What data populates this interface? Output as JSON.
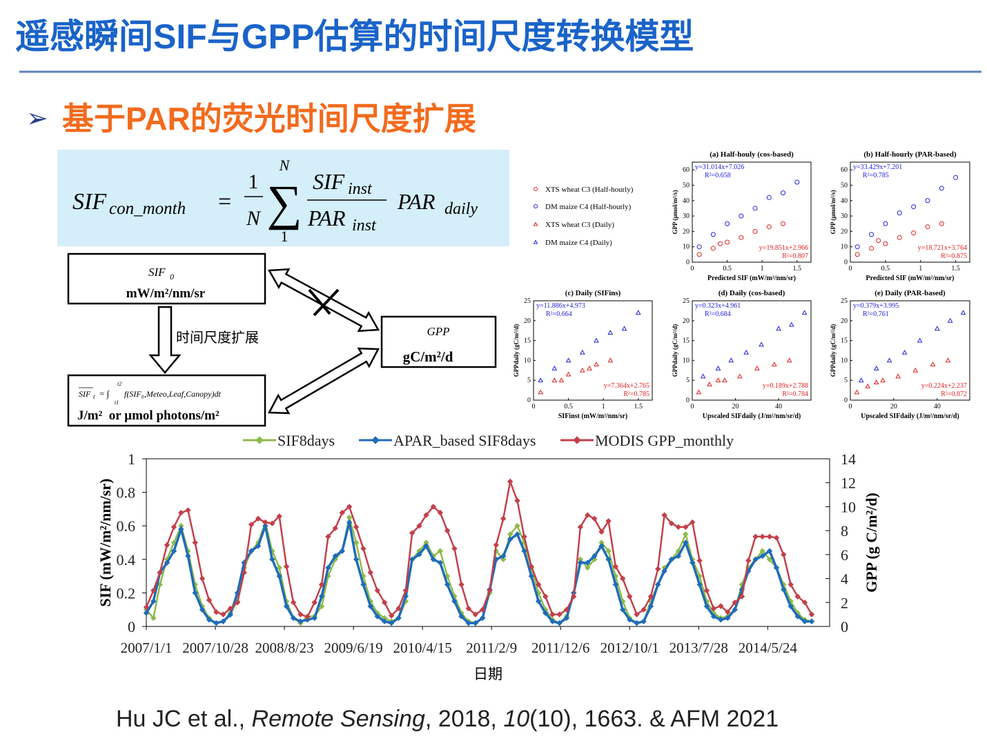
{
  "header": {
    "title": "遥感瞬间SIF与GPP估算的时间尺度转换模型"
  },
  "subtitle": {
    "bullet": "➢",
    "text": "基于PAR的荧光时间尺度扩展"
  },
  "formula": {
    "lhs": "SIF",
    "lhs_sub": "con_month",
    "eq": "=",
    "frac_num": "1",
    "frac_den": "N",
    "sum_top": "N",
    "sum": "∑",
    "sum_bottom": "1",
    "num": "SIF",
    "num_sub": "inst",
    "den": "PAR",
    "den_sub": "inst",
    "rhs": "PAR",
    "rhs_sub": "daily"
  },
  "diagram": {
    "source": {
      "symbol": "SIF",
      "symbol_sub": "0",
      "unit": "mW/m²/nm/sr"
    },
    "target": {
      "label": "GPP",
      "unit": "gC/m²/d"
    },
    "upscaled": {
      "symbol": "SIF",
      "symbol_sub": "t",
      "expr": "= ∫",
      "lower": "t1",
      "upper": "t2",
      "body": "f(SIF₀,Meteo,Leaf,Canopy)dt",
      "unit": "J/m²  or µmol photons/m²"
    },
    "arrow_label": "时间尺度扩展"
  },
  "chart_data": [
    {
      "type": "scatter",
      "marker": "circle",
      "title": "(a) Half-houly (cos-based)",
      "xlabel": "Predicted SIF (mW/m²/nm/sr)",
      "ylabel": "GPP (μmol/m²/s)",
      "xlim": [
        0,
        1.7
      ],
      "ylim": [
        0,
        65
      ],
      "xticks": [
        0,
        0.5,
        1,
        1.5
      ],
      "yticks": [
        0,
        10,
        20,
        30,
        40,
        50,
        60
      ],
      "series": [
        {
          "name": "XTS wheat C3 (Half-hourly)",
          "color": "#e02020",
          "x": [
            0.1,
            0.3,
            0.5,
            0.7,
            0.9,
            1.1,
            1.3,
            0.4
          ],
          "values": [
            5,
            9,
            13,
            16,
            20,
            23,
            25,
            12
          ]
        },
        {
          "name": "DM maize C4 (Half-hourly)",
          "color": "#2020e0",
          "x": [
            0.1,
            0.3,
            0.5,
            0.7,
            0.9,
            1.1,
            1.3,
            1.5
          ],
          "values": [
            10,
            18,
            25,
            30,
            35,
            42,
            45,
            52
          ]
        }
      ],
      "annotations": [
        "y=31.014x+7.026",
        "R²=0.658",
        "y=19.851x+2.966",
        "R²=0.807"
      ]
    },
    {
      "type": "scatter",
      "marker": "circle",
      "title": "(b) Half-hourly (PAR-based)",
      "xlabel": "Predicted SIF (mW/m²/nm/sr)",
      "ylabel": "GPP (μmol/m²/s)",
      "xlim": [
        0,
        1.7
      ],
      "ylim": [
        0,
        65
      ],
      "xticks": [
        0,
        0.5,
        1,
        1.5
      ],
      "yticks": [
        0,
        10,
        20,
        30,
        40,
        50,
        60
      ],
      "series": [
        {
          "color": "#e02020",
          "x": [
            0.1,
            0.3,
            0.5,
            0.7,
            0.9,
            1.1,
            1.3,
            0.4
          ],
          "values": [
            5,
            9,
            12,
            16,
            19,
            23,
            25,
            14
          ]
        },
        {
          "color": "#2020e0",
          "x": [
            0.1,
            0.3,
            0.5,
            0.7,
            0.9,
            1.1,
            1.3,
            1.5
          ],
          "values": [
            10,
            18,
            25,
            32,
            36,
            40,
            48,
            55
          ]
        }
      ],
      "annotations": [
        "y=33.429x+7.201",
        "R²=0.785",
        "y=18.721x+3.764",
        "R²=0.875"
      ]
    },
    {
      "type": "scatter",
      "marker": "triangle",
      "title": "(c) Daily (SIFins)",
      "xlabel": "SIFinst (mW/m²/nm/sr)",
      "ylabel": "GPPdaily (gC/m²/d)",
      "xlim": [
        0,
        1.7
      ],
      "ylim": [
        0,
        25
      ],
      "xticks": [
        0,
        0.5,
        1,
        1.5
      ],
      "yticks": [
        0,
        5,
        10,
        15,
        20,
        25
      ],
      "series": [
        {
          "name": "XTS wheat C3 (Daily)",
          "color": "#e02020",
          "x": [
            0.1,
            0.3,
            0.5,
            0.7,
            0.9,
            1.1,
            0.4,
            0.8
          ],
          "values": [
            2,
            5,
            6.5,
            7.5,
            9,
            10,
            5,
            8
          ]
        },
        {
          "name": "DM maize C4 (Daily)",
          "color": "#2020e0",
          "x": [
            0.1,
            0.3,
            0.5,
            0.7,
            0.9,
            1.1,
            1.3,
            1.5
          ],
          "values": [
            5,
            8,
            10,
            12,
            15,
            17,
            18,
            22
          ]
        }
      ],
      "annotations": [
        "y=11.886x+4.973",
        "R²=0.664",
        "y=7.364x+2.765",
        "R²=0.785"
      ]
    },
    {
      "type": "scatter",
      "marker": "triangle",
      "title": "(d) Daily (cos-based)",
      "xlabel": "Upscaled SIFdaily (J/m²/nm/sr/d)",
      "ylabel": "GPPdaily (gC/m²/d)",
      "xlim": [
        0,
        55
      ],
      "ylim": [
        0,
        25
      ],
      "xticks": [
        0,
        20,
        40
      ],
      "yticks": [
        0,
        5,
        10,
        15,
        20,
        25
      ],
      "series": [
        {
          "color": "#e02020",
          "x": [
            3,
            8,
            15,
            22,
            30,
            38,
            45,
            12
          ],
          "values": [
            2,
            4,
            5,
            6,
            8,
            9,
            10,
            5
          ]
        },
        {
          "color": "#2020e0",
          "x": [
            5,
            12,
            18,
            25,
            32,
            40,
            46,
            52
          ],
          "values": [
            6,
            8,
            10,
            12,
            14,
            18,
            19,
            22
          ]
        }
      ],
      "annotations": [
        "y=0.323x+4.961",
        "R²=0.684",
        "y=0.189x+2.788",
        "R²=0.784"
      ]
    },
    {
      "type": "scatter",
      "marker": "triangle",
      "title": "(e) Daily (PAR-based)",
      "xlabel": "Upscaled SIFdaily (J/m²/nm/sr/d)",
      "ylabel": "GPPdaily (gC/m²/d)",
      "xlim": [
        0,
        55
      ],
      "ylim": [
        0,
        25
      ],
      "xticks": [
        0,
        20,
        40
      ],
      "yticks": [
        0,
        5,
        10,
        15,
        20,
        25
      ],
      "series": [
        {
          "color": "#e02020",
          "x": [
            3,
            8,
            15,
            22,
            30,
            38,
            45,
            12
          ],
          "values": [
            2,
            3.5,
            5,
            6,
            7.5,
            9,
            10,
            4.5
          ]
        },
        {
          "color": "#2020e0",
          "x": [
            5,
            12,
            18,
            25,
            32,
            40,
            46,
            52
          ],
          "values": [
            5,
            8,
            10,
            12,
            15,
            18,
            20,
            22
          ]
        }
      ],
      "annotations": [
        "y=0.379x+3.995",
        "R²=0.761",
        "y=0.224x+2.237",
        "R²=0.872"
      ]
    },
    {
      "type": "line",
      "xlabel": "日期",
      "ylabel": "SIF (mW/m²/nm/sr)",
      "y2label": "GPP (g C/m²/d)",
      "xlim": [
        "2007/1/1",
        "2015/2/17"
      ],
      "xticks": [
        "2007/1/1",
        "2007/10/28",
        "2008/8/23",
        "2009/6/19",
        "2010/4/15",
        "2011/2/9",
        "2011/12/6",
        "2012/10/1",
        "2013/7/28",
        "2014/5/24"
      ],
      "ylim": [
        0,
        1
      ],
      "yticks": [
        0,
        0.2,
        0.4,
        0.6,
        0.8,
        1
      ],
      "y2lim": [
        0,
        14
      ],
      "y2ticks": [
        0,
        2,
        4,
        6,
        8,
        10,
        12,
        14
      ],
      "x": [
        "2007/1/1",
        "2007/2/1",
        "2007/3/1",
        "2007/4/1",
        "2007/5/1",
        "2007/6/1",
        "2007/7/1",
        "2007/8/1",
        "2007/9/1",
        "2007/10/1",
        "2007/11/1",
        "2007/12/1",
        "2008/1/1",
        "2008/2/1",
        "2008/3/1",
        "2008/4/1",
        "2008/5/1",
        "2008/6/1",
        "2008/7/1",
        "2008/8/1",
        "2008/9/1",
        "2008/10/1",
        "2008/11/1",
        "2008/12/1",
        "2009/1/1",
        "2009/2/1",
        "2009/3/1",
        "2009/4/1",
        "2009/5/1",
        "2009/6/1",
        "2009/7/1",
        "2009/8/1",
        "2009/9/1",
        "2009/10/1",
        "2009/11/1",
        "2009/12/1",
        "2010/1/1",
        "2010/2/1",
        "2010/3/1",
        "2010/4/1",
        "2010/5/1",
        "2010/6/1",
        "2010/7/1",
        "2010/8/1",
        "2010/9/1",
        "2010/10/1",
        "2010/11/1",
        "2010/12/1",
        "2011/1/1",
        "2011/2/1",
        "2011/3/1",
        "2011/4/1",
        "2011/5/1",
        "2011/6/1",
        "2011/7/1",
        "2011/8/1",
        "2011/9/1",
        "2011/10/1",
        "2011/11/1",
        "2011/12/1",
        "2012/1/1",
        "2012/2/1",
        "2012/3/1",
        "2012/4/1",
        "2012/5/1",
        "2012/6/1",
        "2012/7/1",
        "2012/8/1",
        "2012/9/1",
        "2012/10/1",
        "2012/11/1",
        "2012/12/1",
        "2013/1/1",
        "2013/2/1",
        "2013/3/1",
        "2013/4/1",
        "2013/5/1",
        "2013/6/1",
        "2013/7/1",
        "2013/8/1",
        "2013/9/1",
        "2013/10/1",
        "2013/11/1",
        "2013/12/1",
        "2014/1/1",
        "2014/2/1",
        "2014/3/1",
        "2014/4/1",
        "2014/5/1",
        "2014/6/1",
        "2014/7/1",
        "2014/8/1",
        "2014/9/1",
        "2014/10/1",
        "2014/11/1",
        "2014/12/1"
      ],
      "series": [
        {
          "name": "SIF8days",
          "color": "#8dbb4a",
          "values": [
            0.1,
            0.05,
            0.25,
            0.4,
            0.5,
            0.6,
            0.45,
            0.25,
            0.12,
            0.05,
            0.02,
            0.03,
            0.08,
            0.15,
            0.35,
            0.45,
            0.5,
            0.62,
            0.45,
            0.35,
            0.15,
            0.05,
            0.02,
            0.06,
            0.06,
            0.12,
            0.3,
            0.4,
            0.45,
            0.65,
            0.5,
            0.3,
            0.15,
            0.08,
            0.05,
            0.03,
            0.05,
            0.15,
            0.4,
            0.45,
            0.5,
            0.42,
            0.45,
            0.3,
            0.18,
            0.08,
            0.03,
            0.02,
            0.05,
            0.2,
            0.45,
            0.4,
            0.55,
            0.6,
            0.5,
            0.35,
            0.2,
            0.1,
            0.04,
            0.02,
            0.06,
            0.2,
            0.4,
            0.35,
            0.4,
            0.5,
            0.45,
            0.3,
            0.15,
            0.05,
            0.02,
            0.03,
            0.15,
            0.25,
            0.35,
            0.4,
            0.45,
            0.55,
            0.4,
            0.3,
            0.15,
            0.08,
            0.05,
            0.06,
            0.1,
            0.25,
            0.35,
            0.4,
            0.45,
            0.4,
            0.35,
            0.25,
            0.15,
            0.08,
            0.04,
            0.03
          ]
        },
        {
          "name": "APAR_based SIF8days",
          "color": "#1f6cb8",
          "values": [
            0.08,
            0.15,
            0.32,
            0.38,
            0.45,
            0.58,
            0.42,
            0.2,
            0.1,
            0.04,
            0.02,
            0.03,
            0.07,
            0.2,
            0.38,
            0.45,
            0.48,
            0.6,
            0.4,
            0.3,
            0.12,
            0.05,
            0.03,
            0.04,
            0.05,
            0.18,
            0.35,
            0.42,
            0.45,
            0.62,
            0.4,
            0.25,
            0.12,
            0.06,
            0.03,
            0.02,
            0.05,
            0.18,
            0.4,
            0.43,
            0.48,
            0.4,
            0.38,
            0.25,
            0.15,
            0.06,
            0.02,
            0.02,
            0.05,
            0.22,
            0.4,
            0.42,
            0.52,
            0.55,
            0.45,
            0.3,
            0.15,
            0.08,
            0.03,
            0.02,
            0.05,
            0.2,
            0.38,
            0.38,
            0.42,
            0.48,
            0.4,
            0.25,
            0.1,
            0.04,
            0.02,
            0.03,
            0.12,
            0.25,
            0.33,
            0.4,
            0.42,
            0.5,
            0.38,
            0.25,
            0.12,
            0.06,
            0.04,
            0.05,
            0.1,
            0.22,
            0.33,
            0.4,
            0.42,
            0.45,
            0.35,
            0.22,
            0.12,
            0.06,
            0.03,
            0.03
          ]
        },
        {
          "name": "MODIS GPP_monthly",
          "color": "#c2404a",
          "axis": "y2",
          "values": [
            1.6,
            3.0,
            4.5,
            6.8,
            8.3,
            9.5,
            9.7,
            7.0,
            4.0,
            2.2,
            1.2,
            1.0,
            1.5,
            2.0,
            4.5,
            8.5,
            9.0,
            8.7,
            8.6,
            9.2,
            5.0,
            2.0,
            1.0,
            0.8,
            2.0,
            3.5,
            7.5,
            8.2,
            9.5,
            10.0,
            8.3,
            6.5,
            4.5,
            3.0,
            2.0,
            0.9,
            1.5,
            3.0,
            7.8,
            8.4,
            9.3,
            10.0,
            9.5,
            8.0,
            6.5,
            3.5,
            1.5,
            1.0,
            1.4,
            3.0,
            6.8,
            9.0,
            12.1,
            10.5,
            7.5,
            5.0,
            3.5,
            2.5,
            1.0,
            1.0,
            1.4,
            2.5,
            8.3,
            9.3,
            9.0,
            7.9,
            8.8,
            5.0,
            4.0,
            2.5,
            1.0,
            1.4,
            2.5,
            4.8,
            9.3,
            8.6,
            8.3,
            8.3,
            8.7,
            5.5,
            3.0,
            1.5,
            1.7,
            1.2,
            2.0,
            2.5,
            5.5,
            7.5,
            7.5,
            7.5,
            7.4,
            6.0,
            3.5,
            2.5,
            2.0,
            1.0
          ]
        }
      ]
    }
  ],
  "citation": [
    "Hu JC et al., ",
    "Remote Sensing",
    ", 2018, ",
    "10",
    "(10), 1663. & AFM 2021"
  ]
}
